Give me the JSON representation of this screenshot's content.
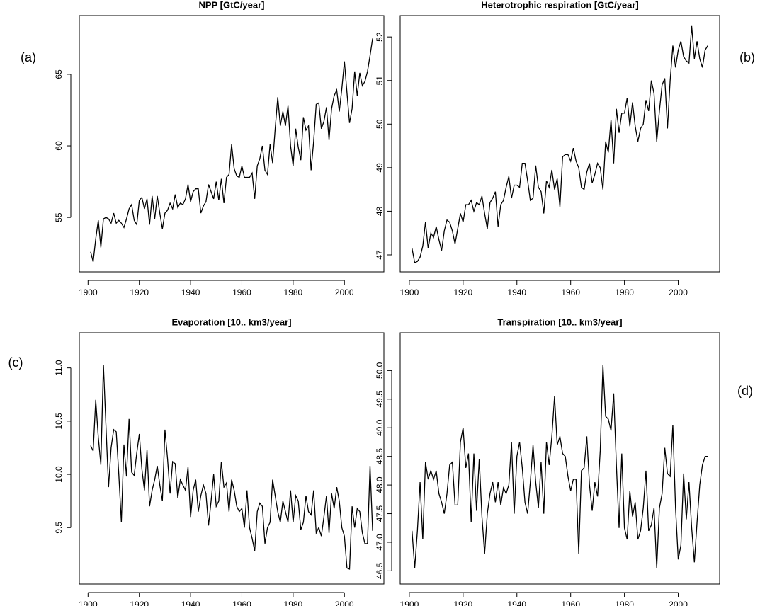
{
  "chart_data": [
    {
      "type": "line",
      "title": "NPP [GtC/year]",
      "annotation": "(a)",
      "color": "#000000",
      "x": [
        1901,
        1902,
        1903,
        1904,
        1905,
        1906,
        1907,
        1908,
        1909,
        1910,
        1911,
        1912,
        1913,
        1914,
        1915,
        1916,
        1917,
        1918,
        1919,
        1920,
        1921,
        1922,
        1923,
        1924,
        1925,
        1926,
        1927,
        1928,
        1929,
        1930,
        1931,
        1932,
        1933,
        1934,
        1935,
        1936,
        1937,
        1938,
        1939,
        1940,
        1941,
        1942,
        1943,
        1944,
        1945,
        1946,
        1947,
        1948,
        1949,
        1950,
        1951,
        1952,
        1953,
        1954,
        1955,
        1956,
        1957,
        1958,
        1959,
        1960,
        1961,
        1962,
        1963,
        1964,
        1965,
        1966,
        1967,
        1968,
        1969,
        1970,
        1971,
        1972,
        1973,
        1974,
        1975,
        1976,
        1977,
        1978,
        1979,
        1980,
        1981,
        1982,
        1983,
        1984,
        1985,
        1986,
        1987,
        1988,
        1989,
        1990,
        1991,
        1992,
        1993,
        1994,
        1995,
        1996,
        1997,
        1998,
        1999,
        2000,
        2001,
        2002,
        2003,
        2004,
        2005,
        2006,
        2007,
        2008,
        2009,
        2010,
        2011
      ],
      "values": [
        52.6,
        51.9,
        53.5,
        54.8,
        52.9,
        54.9,
        55.0,
        54.9,
        54.6,
        55.3,
        54.6,
        54.8,
        54.6,
        54.3,
        54.9,
        55.6,
        55.9,
        54.8,
        54.5,
        56.2,
        56.4,
        55.6,
        56.3,
        54.5,
        56.5,
        54.9,
        56.5,
        55.3,
        54.2,
        55.3,
        55.5,
        56.0,
        55.6,
        56.6,
        55.7,
        56.0,
        55.9,
        56.3,
        57.3,
        56.1,
        56.8,
        57.0,
        57.0,
        55.3,
        55.8,
        56.1,
        57.3,
        56.8,
        56.3,
        57.5,
        56.2,
        57.7,
        56.0,
        57.8,
        58.0,
        60.1,
        58.4,
        57.9,
        57.8,
        58.6,
        57.8,
        57.8,
        57.8,
        58.1,
        56.3,
        58.6,
        59.1,
        60.0,
        58.3,
        58.0,
        60.1,
        58.8,
        61.2,
        63.4,
        61.4,
        62.4,
        61.4,
        62.8,
        60.0,
        58.6,
        61.2,
        59.9,
        59.0,
        62.0,
        61.1,
        61.4,
        58.3,
        60.3,
        62.9,
        63.0,
        61.2,
        61.7,
        62.7,
        60.4,
        62.6,
        63.5,
        63.9,
        62.4,
        64.0,
        65.9,
        63.7,
        61.6,
        62.6,
        65.2,
        63.5,
        65.1,
        64.2,
        64.5,
        65.2,
        66.3,
        67.5
      ],
      "xlim": [
        1896.6,
        2015.4
      ],
      "xticks": [
        1900,
        1920,
        1940,
        1960,
        1980,
        2000
      ],
      "ylim": [
        51.2,
        69.1
      ],
      "yticks": [
        55,
        60,
        65
      ]
    },
    {
      "type": "line",
      "title": "Heterotrophic respiration [GtC/year]",
      "annotation": "(b)",
      "color": "#000000",
      "x": [
        1901,
        1902,
        1903,
        1904,
        1905,
        1906,
        1907,
        1908,
        1909,
        1910,
        1911,
        1912,
        1913,
        1914,
        1915,
        1916,
        1917,
        1918,
        1919,
        1920,
        1921,
        1922,
        1923,
        1924,
        1925,
        1926,
        1927,
        1928,
        1929,
        1930,
        1931,
        1932,
        1933,
        1934,
        1935,
        1936,
        1937,
        1938,
        1939,
        1940,
        1941,
        1942,
        1943,
        1944,
        1945,
        1946,
        1947,
        1948,
        1949,
        1950,
        1951,
        1952,
        1953,
        1954,
        1955,
        1956,
        1957,
        1958,
        1959,
        1960,
        1961,
        1962,
        1963,
        1964,
        1965,
        1966,
        1967,
        1968,
        1969,
        1970,
        1971,
        1972,
        1973,
        1974,
        1975,
        1976,
        1977,
        1978,
        1979,
        1980,
        1981,
        1982,
        1983,
        1984,
        1985,
        1986,
        1987,
        1988,
        1989,
        1990,
        1991,
        1992,
        1993,
        1994,
        1995,
        1996,
        1997,
        1998,
        1999,
        2000,
        2001,
        2002,
        2003,
        2004,
        2005,
        2006,
        2007,
        2008,
        2009,
        2010,
        2011
      ],
      "values": [
        47.15,
        46.82,
        46.85,
        46.95,
        47.2,
        47.75,
        47.15,
        47.5,
        47.4,
        47.65,
        47.35,
        47.1,
        47.55,
        47.8,
        47.75,
        47.55,
        47.25,
        47.6,
        47.95,
        47.75,
        48.15,
        48.15,
        48.25,
        48.0,
        48.2,
        48.15,
        48.35,
        47.95,
        47.6,
        48.2,
        48.3,
        48.45,
        47.65,
        48.15,
        48.25,
        48.55,
        48.8,
        48.3,
        48.6,
        48.6,
        48.55,
        49.1,
        49.1,
        48.7,
        48.25,
        48.3,
        49.05,
        48.55,
        48.45,
        47.95,
        48.7,
        48.55,
        48.95,
        48.5,
        48.75,
        48.1,
        49.25,
        49.3,
        49.3,
        49.15,
        49.45,
        49.15,
        49.0,
        48.55,
        48.5,
        48.9,
        49.1,
        48.65,
        48.85,
        49.1,
        49.0,
        48.5,
        49.6,
        49.35,
        50.1,
        49.1,
        50.35,
        49.8,
        50.25,
        50.25,
        50.6,
        49.95,
        50.5,
        49.95,
        49.6,
        49.9,
        50.0,
        50.55,
        50.3,
        51.0,
        50.7,
        49.6,
        50.3,
        50.9,
        51.05,
        49.9,
        51.0,
        51.8,
        51.3,
        51.7,
        51.9,
        51.55,
        51.45,
        51.4,
        52.25,
        51.5,
        51.9,
        51.5,
        51.3,
        51.7,
        51.8
      ],
      "xlim": [
        1896.6,
        2015.4
      ],
      "xticks": [
        1900,
        1920,
        1940,
        1960,
        1980,
        2000
      ],
      "ylim": [
        46.61,
        52.49
      ],
      "yticks": [
        47,
        48,
        49,
        50,
        51,
        52
      ]
    },
    {
      "type": "line",
      "title": "Evaporation [10.. km3/year]",
      "annotation": "(c)",
      "color": "#000000",
      "x": [
        1901,
        1902,
        1903,
        1904,
        1905,
        1906,
        1907,
        1908,
        1909,
        1910,
        1911,
        1912,
        1913,
        1914,
        1915,
        1916,
        1917,
        1918,
        1919,
        1920,
        1921,
        1922,
        1923,
        1924,
        1925,
        1926,
        1927,
        1928,
        1929,
        1930,
        1931,
        1932,
        1933,
        1934,
        1935,
        1936,
        1937,
        1938,
        1939,
        1940,
        1941,
        1942,
        1943,
        1944,
        1945,
        1946,
        1947,
        1948,
        1949,
        1950,
        1951,
        1952,
        1953,
        1954,
        1955,
        1956,
        1957,
        1958,
        1959,
        1960,
        1961,
        1962,
        1963,
        1964,
        1965,
        1966,
        1967,
        1968,
        1969,
        1970,
        1971,
        1972,
        1973,
        1974,
        1975,
        1976,
        1977,
        1978,
        1979,
        1980,
        1981,
        1982,
        1983,
        1984,
        1985,
        1986,
        1987,
        1988,
        1989,
        1990,
        1991,
        1992,
        1993,
        1994,
        1995,
        1996,
        1997,
        1998,
        1999,
        2000,
        2001,
        2002,
        2003,
        2004,
        2005,
        2006,
        2007,
        2008,
        2009,
        2010,
        2011
      ],
      "values": [
        10.27,
        10.22,
        10.7,
        10.35,
        10.09,
        11.03,
        10.45,
        9.88,
        10.25,
        10.42,
        10.4,
        10.0,
        9.55,
        10.28,
        9.98,
        10.52,
        10.02,
        9.99,
        10.2,
        10.38,
        10.05,
        9.85,
        10.23,
        9.7,
        9.85,
        9.95,
        10.08,
        9.9,
        9.75,
        10.42,
        10.15,
        9.82,
        10.12,
        10.1,
        9.78,
        9.95,
        9.9,
        9.85,
        10.07,
        9.6,
        9.85,
        9.95,
        9.65,
        9.8,
        9.9,
        9.82,
        9.52,
        9.75,
        10.0,
        9.7,
        9.75,
        10.12,
        9.88,
        9.92,
        9.65,
        9.95,
        9.85,
        9.7,
        9.65,
        9.68,
        9.5,
        9.85,
        9.5,
        9.4,
        9.28,
        9.65,
        9.73,
        9.7,
        9.35,
        9.5,
        9.55,
        9.95,
        9.8,
        9.65,
        9.55,
        9.75,
        9.65,
        9.55,
        9.85,
        9.55,
        9.8,
        9.75,
        9.48,
        9.55,
        9.8,
        9.65,
        9.62,
        9.85,
        9.45,
        9.5,
        9.42,
        9.6,
        9.8,
        9.45,
        9.82,
        9.68,
        9.88,
        9.75,
        9.5,
        9.42,
        9.12,
        9.11,
        9.7,
        9.5,
        9.68,
        9.65,
        9.45,
        9.35,
        9.35,
        10.08,
        9.47
      ],
      "xlim": [
        1896.6,
        2015.4
      ],
      "xticks": [
        1900,
        1920,
        1940,
        1960,
        1980,
        2000
      ],
      "ylim": [
        8.97,
        11.33
      ],
      "yticks": [
        9.5,
        {
          "value": 10,
          "label": "10.0"
        },
        10.5,
        {
          "value": 11,
          "label": "11.0"
        }
      ]
    },
    {
      "type": "line",
      "title": "Transpiration [10.. km3/year]",
      "annotation": "(d)",
      "color": "#000000",
      "x": [
        1901,
        1902,
        1903,
        1904,
        1905,
        1906,
        1907,
        1908,
        1909,
        1910,
        1911,
        1912,
        1913,
        1914,
        1915,
        1916,
        1917,
        1918,
        1919,
        1920,
        1921,
        1922,
        1923,
        1924,
        1925,
        1926,
        1927,
        1928,
        1929,
        1930,
        1931,
        1932,
        1933,
        1934,
        1935,
        1936,
        1937,
        1938,
        1939,
        1940,
        1941,
        1942,
        1943,
        1944,
        1945,
        1946,
        1947,
        1948,
        1949,
        1950,
        1951,
        1952,
        1953,
        1954,
        1955,
        1956,
        1957,
        1958,
        1959,
        1960,
        1961,
        1962,
        1963,
        1964,
        1965,
        1966,
        1967,
        1968,
        1969,
        1970,
        1971,
        1972,
        1973,
        1974,
        1975,
        1976,
        1977,
        1978,
        1979,
        1980,
        1981,
        1982,
        1983,
        1984,
        1985,
        1986,
        1987,
        1988,
        1989,
        1990,
        1991,
        1992,
        1993,
        1994,
        1995,
        1996,
        1997,
        1998,
        1999,
        2000,
        2001,
        2002,
        2003,
        2004,
        2005,
        2006,
        2007,
        2008,
        2009,
        2010,
        2011
      ],
      "values": [
        47.2,
        46.55,
        47.2,
        48.05,
        47.05,
        48.4,
        48.1,
        48.25,
        48.1,
        48.25,
        47.85,
        47.7,
        47.5,
        47.85,
        48.35,
        48.4,
        47.65,
        47.65,
        48.75,
        49.0,
        48.3,
        48.55,
        47.35,
        48.55,
        47.55,
        48.45,
        47.45,
        46.8,
        47.5,
        47.85,
        48.05,
        47.7,
        48.05,
        47.65,
        47.95,
        47.85,
        48.0,
        48.75,
        47.5,
        48.5,
        48.75,
        48.3,
        47.7,
        47.5,
        48.05,
        48.7,
        48.05,
        47.6,
        48.4,
        47.5,
        48.75,
        48.35,
        48.85,
        49.55,
        48.7,
        48.85,
        48.55,
        48.5,
        48.15,
        47.9,
        48.1,
        48.1,
        46.8,
        48.25,
        48.3,
        48.85,
        48.0,
        47.55,
        48.05,
        47.8,
        48.6,
        50.1,
        49.2,
        49.15,
        48.95,
        49.6,
        48.35,
        47.25,
        48.55,
        47.25,
        47.05,
        47.9,
        47.45,
        47.7,
        47.05,
        47.2,
        47.6,
        48.25,
        47.2,
        47.3,
        47.6,
        46.55,
        47.6,
        47.85,
        48.65,
        48.2,
        48.15,
        49.05,
        47.6,
        46.7,
        46.95,
        48.2,
        47.4,
        48.05,
        47.25,
        46.65,
        47.35,
        48.0,
        48.35,
        48.5,
        48.5
      ],
      "xlim": [
        1896.6,
        2015.4
      ],
      "xticks": [
        1900,
        1920,
        1940,
        1960,
        1980,
        2000
      ],
      "ylim": [
        46.27,
        50.66
      ],
      "yticks": [
        46.5,
        {
          "value": 47,
          "label": "47.0"
        },
        47.5,
        {
          "value": 48,
          "label": "48.0"
        },
        48.5,
        {
          "value": 49,
          "label": "49.0"
        },
        49.5,
        {
          "value": 50,
          "label": "50.0"
        }
      ]
    }
  ]
}
